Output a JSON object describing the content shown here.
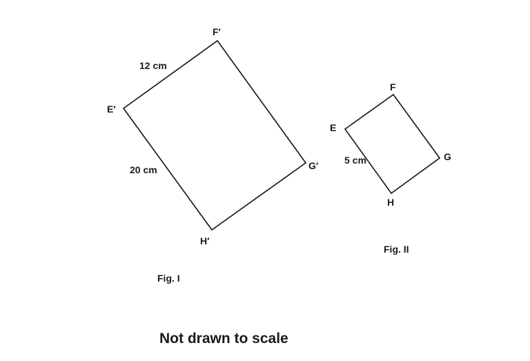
{
  "figure_1": {
    "vertices": {
      "e": "E′",
      "f": "F′",
      "g": "G′",
      "h": "H′"
    },
    "side_lengths": {
      "ef": "12 cm",
      "eh": "20 cm"
    },
    "caption": "Fig. I"
  },
  "figure_2": {
    "vertices": {
      "e": "E",
      "f": "F",
      "g": "G",
      "h": "H"
    },
    "side_lengths": {
      "eh": "5 cm"
    },
    "caption": "Fig. II"
  },
  "note": "Not drawn to scale",
  "colors": {
    "stroke": "#111111",
    "text": "#1a1a1a",
    "background": "#ffffff"
  }
}
